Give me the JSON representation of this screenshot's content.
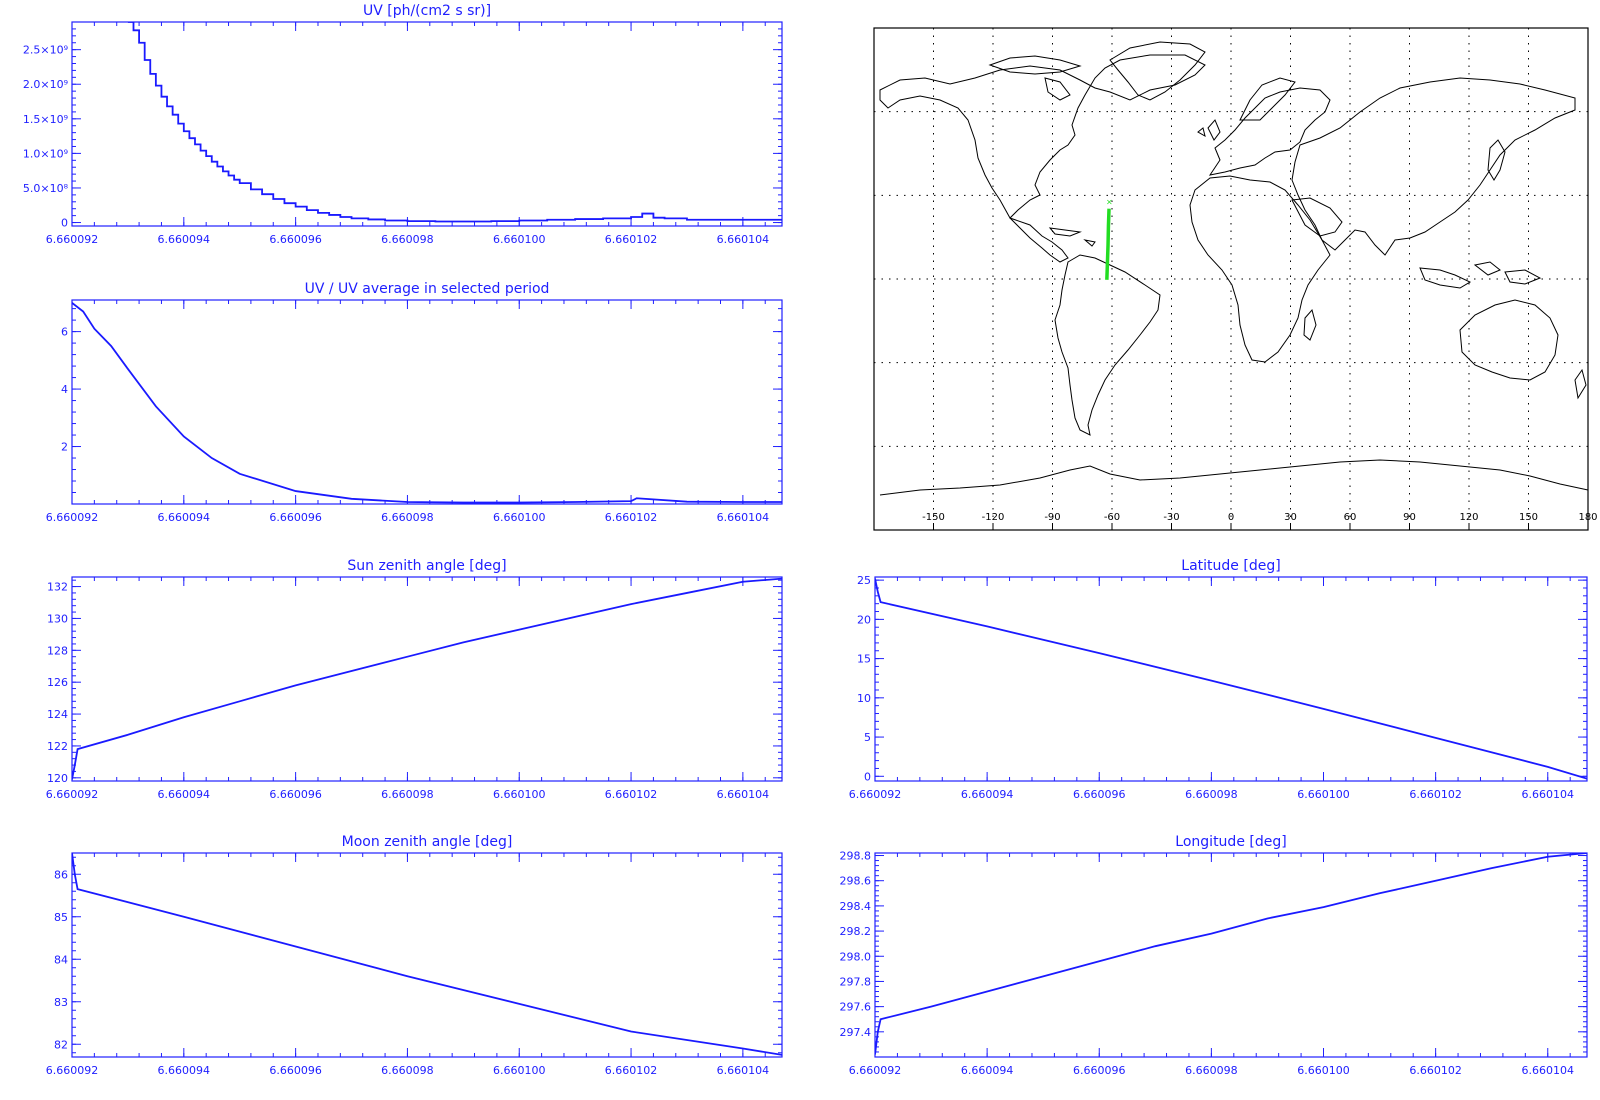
{
  "colors": {
    "plot_blue": "#1a1aff",
    "label_blue": "#2020ff",
    "map_track": "#22dd22",
    "coast": "#000000"
  },
  "chart_data": [
    {
      "id": "uv",
      "type": "line",
      "step": true,
      "title": "UV [ph/(cm2 s sr)]",
      "xlim": [
        6.660092,
        6.6601047
      ],
      "ylim": [
        -50000000,
        2900000000
      ],
      "xticks": [
        6.660092,
        6.660094,
        6.660096,
        6.660098,
        6.6601,
        6.660102,
        6.660104
      ],
      "xtick_labels": [
        "6.660092",
        "6.660094",
        "6.660096",
        "6.660098",
        "6.660100",
        "6.660102",
        "6.660104"
      ],
      "yticks": [
        0,
        500000000,
        1000000000,
        1500000000,
        2000000000,
        2500000000
      ],
      "ytick_labels": [
        "0",
        "5.0×10⁸",
        "1.0×10⁹",
        "1.5×10⁹",
        "2.0×10⁹",
        "2.5×10⁹"
      ],
      "x": [
        6.660093,
        6.6600931,
        6.6600932,
        6.6600933,
        6.6600934,
        6.6600935,
        6.6600936,
        6.6600937,
        6.6600938,
        6.6600939,
        6.660094,
        6.6600941,
        6.6600942,
        6.6600943,
        6.6600944,
        6.6600945,
        6.6600946,
        6.6600947,
        6.6600948,
        6.6600949,
        6.660095,
        6.6600952,
        6.6600954,
        6.6600956,
        6.6600958,
        6.660096,
        6.6600962,
        6.6600964,
        6.6600966,
        6.6600968,
        6.660097,
        6.6600973,
        6.6600976,
        6.660098,
        6.6600985,
        6.660099,
        6.6600995,
        6.6601,
        6.6601005,
        6.660101,
        6.6601015,
        6.660102,
        6.6601022,
        6.6601024,
        6.6601026,
        6.660103,
        6.6601035,
        6.660104,
        6.6601047
      ],
      "y": [
        2900000000,
        2780000000,
        2600000000,
        2350000000,
        2150000000,
        1980000000,
        1820000000,
        1680000000,
        1560000000,
        1430000000,
        1320000000,
        1220000000,
        1130000000,
        1040000000,
        960000000,
        880000000,
        810000000,
        740000000,
        680000000,
        620000000,
        570000000,
        480000000,
        410000000,
        340000000,
        280000000,
        230000000,
        180000000,
        140000000,
        110000000,
        80000000,
        60000000,
        45000000,
        30000000,
        20000000,
        15000000,
        15000000,
        20000000,
        30000000,
        40000000,
        50000000,
        60000000,
        80000000,
        130000000,
        70000000,
        60000000,
        40000000,
        40000000,
        40000000,
        50000000
      ]
    },
    {
      "id": "uv-ratio",
      "type": "line",
      "title": "UV / UV average in selected period",
      "xlim": [
        6.660092,
        6.6601047
      ],
      "ylim": [
        0,
        7.1
      ],
      "xticks": [
        6.660092,
        6.660094,
        6.660096,
        6.660098,
        6.6601,
        6.660102,
        6.660104
      ],
      "xtick_labels": [
        "6.660092",
        "6.660094",
        "6.660096",
        "6.660098",
        "6.660100",
        "6.660102",
        "6.660104"
      ],
      "yticks": [
        2,
        4,
        6
      ],
      "ytick_labels": [
        "2",
        "4",
        "6"
      ],
      "x": [
        6.660092,
        6.6600922,
        6.6600924,
        6.6600927,
        6.660093,
        6.6600935,
        6.660094,
        6.6600945,
        6.660095,
        6.660096,
        6.660097,
        6.660098,
        6.660099,
        6.6601,
        6.660101,
        6.660102,
        6.6601021,
        6.660103,
        6.660104,
        6.6601047
      ],
      "y": [
        7.0,
        6.7,
        6.1,
        5.5,
        4.7,
        3.4,
        2.35,
        1.6,
        1.05,
        0.45,
        0.18,
        0.07,
        0.05,
        0.05,
        0.07,
        0.1,
        0.2,
        0.08,
        0.07,
        0.07
      ]
    },
    {
      "id": "sun-zenith",
      "type": "line",
      "title": "Sun zenith angle [deg]",
      "xlim": [
        6.660092,
        6.6601047
      ],
      "ylim": [
        119.8,
        132.6
      ],
      "xticks": [
        6.660092,
        6.660094,
        6.660096,
        6.660098,
        6.6601,
        6.660102,
        6.660104
      ],
      "xtick_labels": [
        "6.660092",
        "6.660094",
        "6.660096",
        "6.660098",
        "6.660100",
        "6.660102",
        "6.660104"
      ],
      "yticks": [
        120,
        122,
        124,
        126,
        128,
        130,
        132
      ],
      "ytick_labels": [
        "120",
        "122",
        "124",
        "126",
        "128",
        "130",
        "132"
      ],
      "x": [
        6.660092,
        6.66009205,
        6.6600921,
        6.660093,
        6.660094,
        6.660095,
        6.660096,
        6.660097,
        6.660098,
        6.660099,
        6.6601,
        6.660101,
        6.660102,
        6.660103,
        6.660104,
        6.6601047
      ],
      "y": [
        119.9,
        120.8,
        121.8,
        122.7,
        123.8,
        124.8,
        125.8,
        126.7,
        127.6,
        128.5,
        129.3,
        130.1,
        130.9,
        131.6,
        132.3,
        132.5
      ]
    },
    {
      "id": "latitude",
      "type": "line",
      "title": "Latitude [deg]",
      "xlim": [
        6.660092,
        6.6601047
      ],
      "ylim": [
        -0.6,
        25.4
      ],
      "xticks": [
        6.660092,
        6.660094,
        6.660096,
        6.660098,
        6.6601,
        6.660102,
        6.660104
      ],
      "xtick_labels": [
        "6.660092",
        "6.660094",
        "6.660096",
        "6.660098",
        "6.660100",
        "6.660102",
        "6.660104"
      ],
      "yticks": [
        0,
        5,
        10,
        15,
        20,
        25
      ],
      "ytick_labels": [
        "0",
        "5",
        "10",
        "15",
        "20",
        "25"
      ],
      "x": [
        6.660092,
        6.66009205,
        6.6600921,
        6.660094,
        6.660096,
        6.660098,
        6.6601,
        6.660102,
        6.660104,
        6.6601047
      ],
      "y": [
        25.2,
        23.5,
        22.2,
        19.1,
        15.7,
        12.2,
        8.6,
        4.9,
        1.2,
        -0.3
      ]
    },
    {
      "id": "moon-zenith",
      "type": "line",
      "title": "Moon zenith angle [deg]",
      "xlim": [
        6.660092,
        6.6601047
      ],
      "ylim": [
        81.7,
        86.5
      ],
      "xticks": [
        6.660092,
        6.660094,
        6.660096,
        6.660098,
        6.6601,
        6.660102,
        6.660104
      ],
      "xtick_labels": [
        "6.660092",
        "6.660094",
        "6.660096",
        "6.660098",
        "6.660100",
        "6.660102",
        "6.660104"
      ],
      "yticks": [
        82,
        83,
        84,
        85,
        86
      ],
      "ytick_labels": [
        "82",
        "83",
        "84",
        "85",
        "86"
      ],
      "x": [
        6.660092,
        6.66009205,
        6.6600921,
        6.660094,
        6.660096,
        6.660098,
        6.6601,
        6.660102,
        6.660104,
        6.6601047
      ],
      "y": [
        86.5,
        86.0,
        85.65,
        85.0,
        84.3,
        83.6,
        82.95,
        82.3,
        81.9,
        81.75
      ]
    },
    {
      "id": "longitude",
      "type": "line",
      "title": "Longitude [deg]",
      "xlim": [
        6.660092,
        6.6601047
      ],
      "ylim": [
        297.2,
        298.82
      ],
      "xticks": [
        6.660092,
        6.660094,
        6.660096,
        6.660098,
        6.6601,
        6.660102,
        6.660104
      ],
      "xtick_labels": [
        "6.660092",
        "6.660094",
        "6.660096",
        "6.660098",
        "6.660100",
        "6.660102",
        "6.660104"
      ],
      "yticks": [
        297.4,
        297.6,
        297.8,
        298.0,
        298.2,
        298.4,
        298.6,
        298.8
      ],
      "ytick_labels": [
        "297.4",
        "297.6",
        "297.8",
        "298.0",
        "298.2",
        "298.4",
        "298.6",
        "298.8"
      ],
      "x": [
        6.660092,
        6.66009205,
        6.6600921,
        6.660093,
        6.660094,
        6.660095,
        6.660096,
        6.660097,
        6.660098,
        6.660099,
        6.6601,
        6.660101,
        6.660102,
        6.660103,
        6.660104,
        6.6601047
      ],
      "y": [
        297.22,
        297.4,
        297.5,
        297.6,
        297.72,
        297.84,
        297.96,
        298.08,
        298.18,
        298.3,
        298.39,
        298.5,
        298.6,
        298.7,
        298.79,
        298.82
      ]
    }
  ],
  "map": {
    "xtick_labels": [
      "-150",
      "-120",
      "-90",
      "-60",
      "-30",
      "0",
      "30",
      "60",
      "90",
      "120",
      "150",
      "180"
    ],
    "xticks": [
      -150,
      -120,
      -90,
      -60,
      -30,
      0,
      30,
      60,
      90,
      120,
      150,
      180
    ],
    "lon_range": [
      -180,
      180
    ],
    "lat_range": [
      -90,
      90
    ],
    "track": {
      "lon": [
        -61.5,
        -61.8,
        -62.0,
        -62.3,
        -62.6
      ],
      "lat": [
        25.2,
        19.0,
        12.2,
        6.0,
        -0.3
      ]
    }
  }
}
